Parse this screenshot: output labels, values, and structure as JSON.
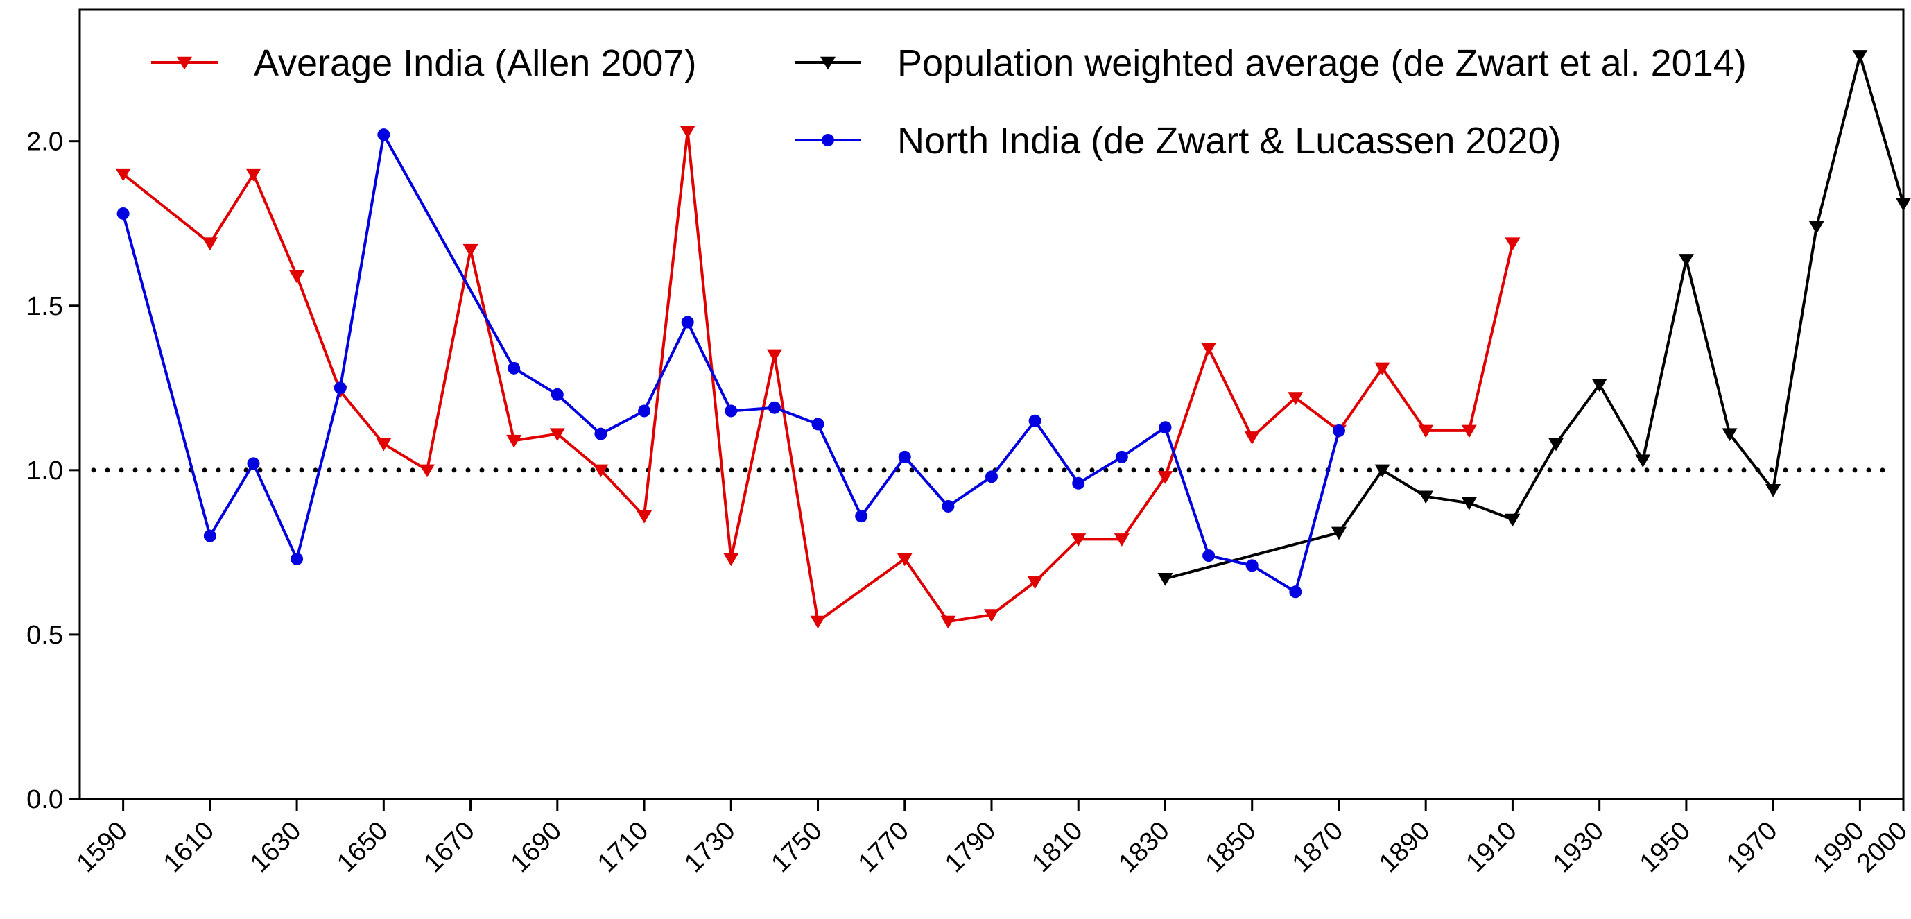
{
  "chart_data": {
    "type": "line",
    "title": "",
    "xlabel": "",
    "ylabel": "",
    "xlim": [
      1580,
      2000
    ],
    "ylim": [
      0,
      2.4
    ],
    "x_ticks": [
      1590,
      1610,
      1630,
      1650,
      1670,
      1690,
      1710,
      1730,
      1750,
      1770,
      1790,
      1810,
      1830,
      1850,
      1870,
      1890,
      1910,
      1930,
      1950,
      1970,
      1990,
      2000
    ],
    "y_ticks": [
      "0.0",
      "0.5",
      "1.0",
      "1.5",
      "2.0"
    ],
    "reference_line": {
      "y": 1.0,
      "style": "dotted",
      "color": "#000000"
    },
    "grid": false,
    "legend_position": "top",
    "series": [
      {
        "name": "Average India (Allen 2007)",
        "color": "#e00000",
        "marker": "triangle-down",
        "x": [
          1590,
          1610,
          1620,
          1630,
          1640,
          1650,
          1660,
          1670,
          1680,
          1690,
          1700,
          1710,
          1720,
          1730,
          1740,
          1750,
          1770,
          1780,
          1790,
          1800,
          1810,
          1820,
          1830,
          1840,
          1850,
          1860,
          1870,
          1880,
          1890,
          1900,
          1910
        ],
        "y": [
          1.9,
          1.69,
          1.9,
          1.59,
          1.24,
          1.08,
          1.0,
          1.67,
          1.09,
          1.11,
          1.0,
          0.86,
          2.03,
          0.73,
          1.35,
          0.54,
          0.73,
          0.54,
          0.56,
          0.66,
          0.79,
          0.79,
          0.98,
          1.37,
          1.1,
          1.22,
          1.12,
          1.31,
          1.12,
          1.12,
          1.69
        ]
      },
      {
        "name": "Population weighted average (de Zwart et al. 2014)",
        "color": "#000000",
        "marker": "triangle-down",
        "x": [
          1830,
          1870,
          1880,
          1890,
          1900,
          1910,
          1920,
          1930,
          1940,
          1950,
          1960,
          1970,
          1980,
          1990,
          2000
        ],
        "y": [
          0.67,
          0.81,
          1.0,
          0.92,
          0.9,
          0.85,
          1.08,
          1.26,
          1.03,
          1.64,
          1.11,
          0.94,
          1.74,
          2.26,
          1.81
        ]
      },
      {
        "name": "North India (de Zwart & Lucassen 2020)",
        "color": "#0000e0",
        "marker": "circle",
        "x": [
          1590,
          1610,
          1620,
          1630,
          1640,
          1650,
          1680,
          1690,
          1700,
          1710,
          1720,
          1730,
          1740,
          1750,
          1760,
          1770,
          1780,
          1790,
          1800,
          1810,
          1820,
          1830,
          1840,
          1850,
          1860,
          1870
        ],
        "y": [
          1.78,
          0.8,
          1.02,
          0.73,
          1.25,
          2.02,
          1.31,
          1.23,
          1.11,
          1.18,
          1.45,
          1.18,
          1.19,
          1.14,
          0.86,
          1.04,
          0.89,
          0.98,
          1.15,
          0.96,
          1.04,
          1.13,
          0.74,
          0.71,
          0.63,
          1.12
        ]
      }
    ]
  }
}
